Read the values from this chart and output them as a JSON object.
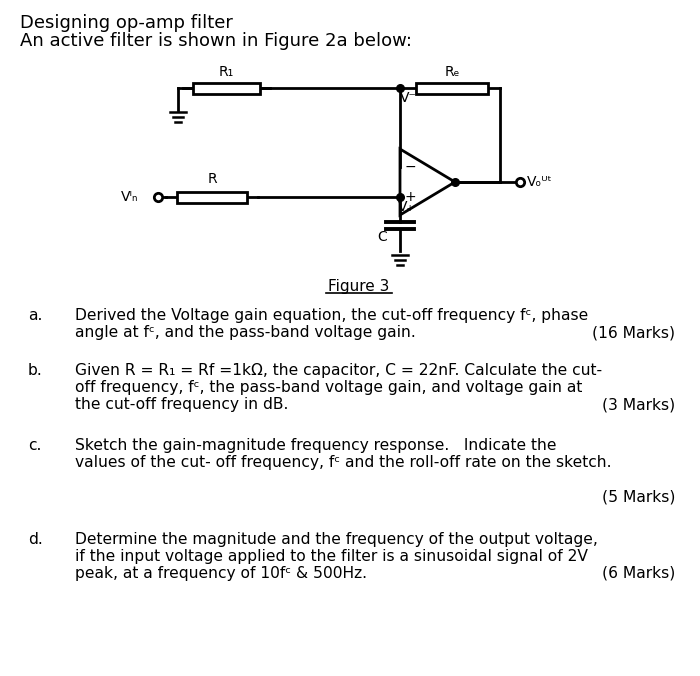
{
  "title_line1": "Designing op-amp filter",
  "title_line2": "An active filter is shown in Figure 2a below:",
  "figure_label": "Figure 3",
  "bg_color": "#ffffff",
  "text_color": "#000000",
  "qa_line1": "Derived the Voltage gain equation, the cut-off frequency fᶜ, phase",
  "qa_line2": "angle at fᶜ, and the pass-band voltage gain.",
  "qa_marks": "(16 Marks)",
  "qb_line1": "Given R = R₁ = Rf =1kΩ, the capacitor, C = 22nF. Calculate the cut-",
  "qb_line2": "off frequency, fᶜ, the pass-band voltage gain, and voltage gain at",
  "qb_line3": "the cut-off frequency in dB.",
  "qb_marks": "(3 Marks)",
  "qc_line1": "Sketch the gain-magnitude frequency response.   Indicate the",
  "qc_line2": "values of the cut- off frequency, fᶜ and the roll-off rate on the sketch.",
  "qc_marks": "(5 Marks)",
  "qd_line1": "Determine the magnitude and the frequency of the output voltage,",
  "qd_line2": "if the input voltage applied to the filter is a sinusoidal signal of 2V",
  "qd_line3": "peak, at a frequency of 10fᶜ & 500Hz.",
  "qd_marks": "(6 Marks)"
}
